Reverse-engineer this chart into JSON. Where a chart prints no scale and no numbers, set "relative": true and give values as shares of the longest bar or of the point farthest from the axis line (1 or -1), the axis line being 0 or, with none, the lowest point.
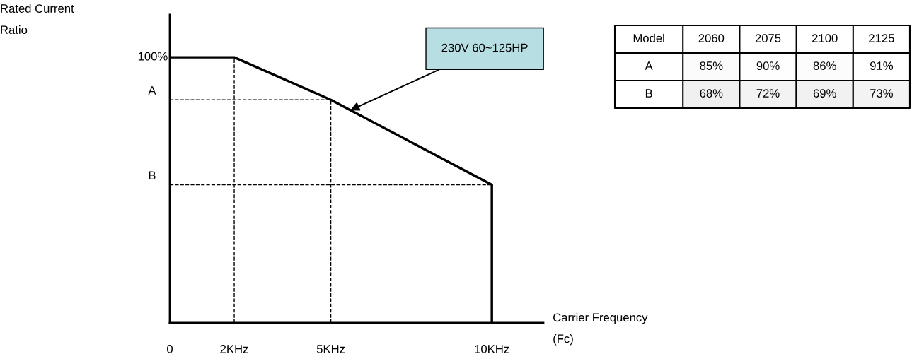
{
  "chart_data": [
    {
      "type": "line",
      "relative": true,
      "ylabel": "Rated Current\nRatio",
      "xlabel": "Carrier Frequency\n(Fc)",
      "x": [
        0,
        2,
        5,
        10,
        10
      ],
      "values": [
        1,
        1,
        0.84,
        0.52,
        0
      ],
      "color": "#000000",
      "xlim": [
        0,
        11.6
      ],
      "xticks": [
        0,
        {
          "value": 2,
          "label": "2KHz"
        },
        {
          "value": 5,
          "label": "5KHz"
        },
        {
          "value": 10,
          "label": "10KHz"
        }
      ],
      "ref_lines": [
        {
          "axis": "x",
          "value": 2,
          "label": null,
          "line_style": "dashed"
        },
        {
          "axis": "x",
          "value": 5,
          "label": null,
          "line_style": "dashed"
        },
        {
          "axis": "y",
          "value": 0.84,
          "label": "A",
          "line_style": "dashed"
        },
        {
          "axis": "y",
          "value": 0.52,
          "label": "B",
          "line_style": "dashed"
        }
      ],
      "annotations": [
        {
          "text": "100%",
          "x": 0,
          "y": 1
        },
        "230V 60~125HP"
      ],
      "marker": "none",
      "line_style": "solid",
      "grid": false,
      "legend": false
    },
    {
      "type": "heatmap",
      "xlabel": "Model",
      "categories": [
        "2060",
        "2075",
        "2100",
        "2125"
      ],
      "y_categories": [
        "A",
        "B"
      ],
      "cells": [
        [
          85,
          90,
          86,
          91
        ],
        [
          68,
          72,
          69,
          73
        ]
      ],
      "cell_labels": [
        [
          "85%",
          "90%",
          "86%",
          "91%"
        ],
        [
          "68%",
          "72%",
          "69%",
          "73%"
        ]
      ],
      "color": "#ffffff"
    }
  ]
}
